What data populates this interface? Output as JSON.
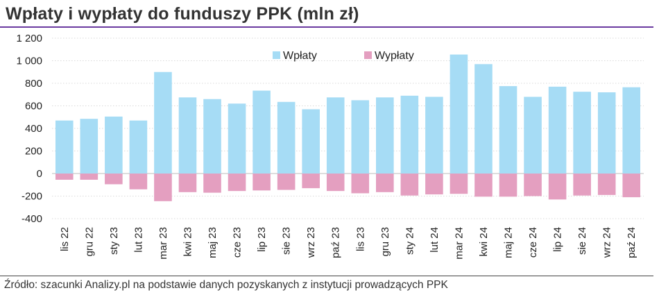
{
  "title": "Wpłaty i wypłaty do funduszy PPK (mln zł)",
  "source": "Źródło: szacunki Analizy.pl na podstawie danych pozyskanych z instytucji prowadzących PPK",
  "chart_data": {
    "type": "bar",
    "stacked": "diverging",
    "categories": [
      "lis 22",
      "gru 22",
      "sty 23",
      "lut 23",
      "mar 23",
      "kwi 23",
      "maj 23",
      "cze 23",
      "lip 23",
      "sie 23",
      "wrz 23",
      "paź 23",
      "lis 23",
      "gru 23",
      "sty 24",
      "lut 24",
      "mar 24",
      "kwi 24",
      "maj 24",
      "cze 24",
      "lip 24",
      "sie 24",
      "wrz 24",
      "paź 24"
    ],
    "series": [
      {
        "name": "Wpłaty",
        "color": "#a6dcf5",
        "values": [
          470,
          485,
          505,
          470,
          900,
          675,
          660,
          620,
          735,
          635,
          570,
          675,
          650,
          675,
          690,
          680,
          1055,
          970,
          775,
          680,
          770,
          725,
          720,
          765
        ]
      },
      {
        "name": "Wypłaty",
        "color": "#e49fc0",
        "values": [
          -55,
          -55,
          -95,
          -140,
          -245,
          -165,
          -170,
          -155,
          -150,
          -145,
          -130,
          -155,
          -175,
          -165,
          -195,
          -185,
          -180,
          -205,
          -205,
          -200,
          -230,
          -195,
          -190,
          -210
        ]
      }
    ],
    "ylim": [
      -400,
      1200
    ],
    "yticks": [
      -400,
      -200,
      0,
      200,
      400,
      600,
      800,
      1000,
      1200
    ],
    "ytick_labels": [
      "-400",
      "-200",
      "0",
      "200",
      "400",
      "600",
      "800",
      "1 000",
      "1 200"
    ],
    "grid": true,
    "legend": "top-center",
    "xlabel": "",
    "ylabel": ""
  }
}
